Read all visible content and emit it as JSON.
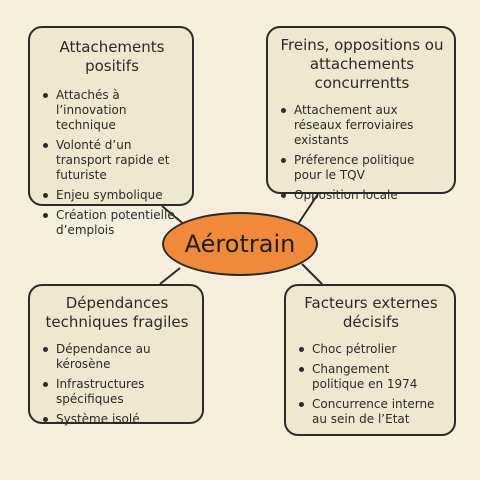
{
  "center": {
    "label": "Aérotrain",
    "color": "#f08a3a"
  },
  "boxes": {
    "top_left": {
      "title": "Attachements positifs",
      "items": [
        "Attachés à l’innovation technique",
        "Volonté d’un transport rapide et futuriste",
        "Enjeu symbolique",
        "Création potentielle d’emplois"
      ]
    },
    "top_right": {
      "title": "Freins, oppositions ou attachements concurrentts",
      "items": [
        "Attachement aux réseaux ferroviaires existants",
        "Préference politique pour le TQV",
        "Opposition locale"
      ]
    },
    "bottom_left": {
      "title": "Dépendances techniques fragiles",
      "items": [
        "Dépendance au kérosène",
        "Infrastructures spécifiques",
        "Système isolé"
      ]
    },
    "bottom_right": {
      "title": "Facteurs externes décisifs",
      "items": [
        "Choc pétrolier",
        "Changement politique en 1974",
        "Concurrence interne au sein de l’Etat"
      ]
    }
  },
  "colors": {
    "background": "#f6efde",
    "box_fill": "#efe7cf",
    "outline": "#2b2b2b"
  }
}
